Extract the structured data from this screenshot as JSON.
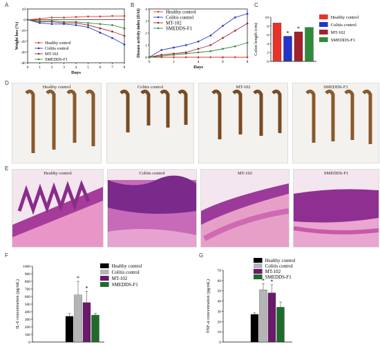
{
  "panels": {
    "a": "A",
    "b": "B",
    "c": "C",
    "d": "D",
    "e": "E",
    "f": "F",
    "g": "G"
  },
  "colors": {
    "healthy": "#e8332b",
    "colitis": "#2433c8",
    "mt102": "#a3212a",
    "smedds": "#2e8b3a",
    "bar_healthy": "#000000",
    "bar_colitis": "#b5b5b5",
    "bar_mt102": "#6b1a6b",
    "bar_smedds": "#1f6b2b"
  },
  "chart_data": [
    {
      "id": "A",
      "type": "line",
      "xlabel": "Days",
      "ylabel": "Weight loss (%)",
      "xlim": [
        0,
        8
      ],
      "ylim": [
        -40,
        10
      ],
      "xticks": [
        0,
        1,
        2,
        3,
        4,
        5,
        6,
        7,
        8
      ],
      "yticks": [
        10,
        0,
        -10,
        -20,
        -30,
        -40
      ],
      "legend": "inside-lower-left",
      "x": [
        0,
        1,
        2,
        3,
        4,
        5,
        6,
        7,
        8
      ],
      "series": [
        {
          "name": "Healthy control",
          "color": "#e8332b",
          "marker": "o",
          "values": [
            0,
            1,
            2,
            2,
            2.5,
            3,
            3,
            3.5,
            3.5
          ]
        },
        {
          "name": "Colitis control",
          "color": "#2433c8",
          "marker": "o",
          "values": [
            0,
            -3,
            -4,
            -4,
            -5,
            -7,
            -12,
            -17,
            -23
          ]
        },
        {
          "name": "MT-102",
          "color": "#a3212a",
          "marker": "o",
          "values": [
            0,
            -2,
            -2,
            -3,
            -3,
            -5,
            -8,
            -11,
            -15
          ]
        },
        {
          "name": "SMEDDS-F1",
          "color": "#2e8b3a",
          "marker": "o",
          "values": [
            0,
            -1,
            -1,
            -2,
            -2,
            -3,
            -4,
            -5,
            -8
          ]
        }
      ]
    },
    {
      "id": "B",
      "type": "line",
      "xlabel": "Days",
      "ylabel": "Disease activity index (DAI)",
      "xlim": [
        0,
        8
      ],
      "ylim": [
        0,
        4
      ],
      "xticks": [
        0,
        2,
        4,
        6,
        8
      ],
      "yticks": [
        0,
        1,
        2,
        3,
        4
      ],
      "legend": "top-left",
      "x": [
        0,
        1,
        2,
        3,
        4,
        5,
        6,
        7,
        8
      ],
      "series": [
        {
          "name": "Healthy control",
          "color": "#e8332b",
          "values": [
            0,
            0,
            0,
            0,
            0,
            0,
            0,
            0,
            0
          ]
        },
        {
          "name": "Colitis control",
          "color": "#2433c8",
          "values": [
            0,
            0.6,
            0.8,
            1.0,
            1.3,
            1.8,
            2.6,
            3.3,
            3.6
          ]
        },
        {
          "name": "MT-102",
          "color": "#a3212a",
          "values": [
            0,
            0.2,
            0.3,
            0.4,
            0.7,
            1.0,
            1.6,
            2.2,
            2.8
          ]
        },
        {
          "name": "SMEDDS-F1",
          "color": "#2e8b3a",
          "values": [
            0,
            0.1,
            0.2,
            0.3,
            0.4,
            0.5,
            0.7,
            0.9,
            1.2
          ]
        }
      ]
    },
    {
      "id": "C",
      "type": "bar",
      "ylabel": "Colon length (cm)",
      "ylim": [
        0,
        10
      ],
      "yticks": [
        0,
        2,
        4,
        6,
        8,
        10
      ],
      "legend": "right",
      "categories": [
        "Healthy control",
        "Colitis control",
        "MT-102",
        "SMEDDS-F1"
      ],
      "values": [
        8.7,
        5.7,
        6.7,
        7.7
      ],
      "annotations": [
        "",
        "*",
        "*",
        ""
      ],
      "colors": [
        "#e8332b",
        "#2433c8",
        "#a3212a",
        "#2e8b3a"
      ]
    },
    {
      "id": "F",
      "type": "bar",
      "ylabel": "IL-6 concentration (pg/mL)",
      "ylim": [
        0,
        1000
      ],
      "yticks": [
        0,
        100,
        200,
        300,
        400,
        500,
        600,
        700,
        800,
        900,
        1000
      ],
      "legend": "top-right",
      "categories": [
        "Healthy control",
        "Colitis control",
        "MT-102",
        "SMEDDS-F1"
      ],
      "values": [
        340,
        620,
        520,
        355
      ],
      "annotations": [
        "",
        "*",
        "*",
        ""
      ],
      "colors": [
        "#000000",
        "#b5b5b5",
        "#6b1a6b",
        "#1f6b2b"
      ]
    },
    {
      "id": "G",
      "type": "bar",
      "ylabel": "TNF-α concentration (pg/mL)",
      "ylim": [
        0,
        70
      ],
      "yticks": [
        0,
        10,
        20,
        30,
        40,
        50,
        60,
        70
      ],
      "legend": "top-right",
      "categories": [
        "Healthy control",
        "Colitis control",
        "MT-102",
        "SMEDDS-F1"
      ],
      "values": [
        27,
        51,
        48,
        34
      ],
      "annotations": [
        "",
        "*",
        "*",
        ""
      ],
      "colors": [
        "#000000",
        "#b5b5b5",
        "#6b1a6b",
        "#1f6b2b"
      ]
    }
  ],
  "photos_d": [
    "Healthy  control",
    "Colitis  control",
    "MT-102",
    "SMEDDS-F1"
  ],
  "photos_e": [
    "Healthy  control",
    "Colitis  control",
    "MT-102",
    "SMEDDS-F1"
  ]
}
